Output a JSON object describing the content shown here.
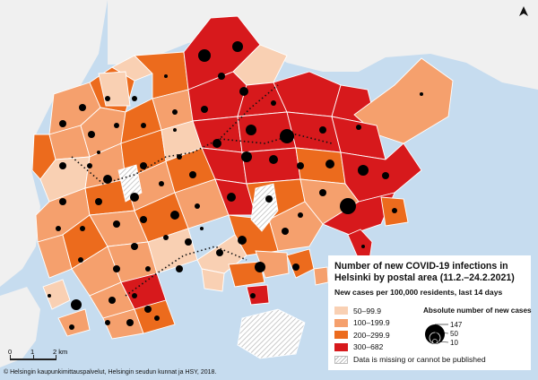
{
  "map": {
    "title": "Number of new COVID-19 infections in Helsinki by postal area (11.2.–24.2.2021)",
    "subtitle": "New cases per 100,000 residents, last 14 days",
    "colors": {
      "sea": "#c6dcef",
      "land_outside": "#f0f0f0",
      "border": "#ffffff",
      "dot": "#000000",
      "route": "#111111"
    },
    "classes": [
      {
        "label": "50–99.9",
        "color": "#f9d0b3"
      },
      {
        "label": "100–199.9",
        "color": "#f5a06d"
      },
      {
        "label": "200–299.9",
        "color": "#ec6b1d"
      },
      {
        "label": "300–682",
        "color": "#d7191c"
      }
    ],
    "missing_label": "Data is missing or cannot be published",
    "absolute": {
      "title": "Absolute number of new cases",
      "levels": [
        147,
        50,
        10
      ]
    },
    "scale": {
      "labels": [
        "0",
        "1",
        "2 km"
      ]
    },
    "credit": "© Helsingin kaupunkimittauspalvelut, Helsingin seudun kunnat ja HSY, 2018.",
    "north_icon": "north-arrow-icon"
  }
}
